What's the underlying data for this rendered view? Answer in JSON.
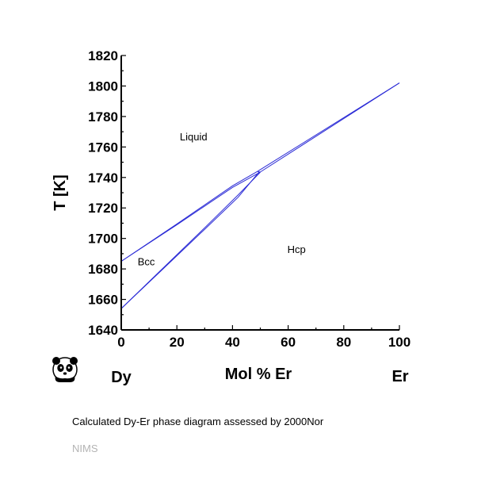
{
  "caption": "Calculated Dy-Er phase diagram assessed by 2000Nor",
  "source_label": "NIMS",
  "icon": "panda-logo-icon",
  "colors": {
    "curve": "#2b2bd6",
    "axis": "#000000",
    "source": "#b4b4b4"
  },
  "chart_data": {
    "type": "line",
    "title": "",
    "xlabel": "Mol % Er",
    "ylabel": "T [K]",
    "xlim": [
      0,
      100
    ],
    "ylim": [
      1640,
      1820
    ],
    "x_ticks": [
      "0",
      "20",
      "40",
      "60",
      "80",
      "100"
    ],
    "y_ticks": [
      "1640",
      "1660",
      "1680",
      "1700",
      "1720",
      "1740",
      "1760",
      "1780",
      "1800",
      "1820"
    ],
    "x_minor_step": 10,
    "y_minor_step": 10,
    "grid": false,
    "legend": "none",
    "element_labels": {
      "left": "Dy",
      "right": "Er"
    },
    "region_labels": [
      {
        "text": "Liquid",
        "x": 26,
        "y": 1767
      },
      {
        "text": "Hcp",
        "x": 63,
        "y": 1693
      },
      {
        "text": "Bcc",
        "x": 9,
        "y": 1685
      }
    ],
    "series": [
      {
        "x": [
          0,
          20,
          40,
          49,
          100
        ],
        "y": [
          1685,
          1709.5,
          1734.5,
          1744,
          1802
        ]
      },
      {
        "x": [
          0,
          20,
          40,
          49.5,
          100
        ],
        "y": [
          1685,
          1709,
          1733.5,
          1743,
          1802
        ]
      },
      {
        "x": [
          0,
          15,
          30,
          42,
          49.5
        ],
        "y": [
          1654,
          1680,
          1706,
          1727,
          1743.5
        ]
      },
      {
        "x": [
          0,
          15,
          30,
          42,
          50
        ],
        "y": [
          1654,
          1680.5,
          1707,
          1728.5,
          1743.5
        ]
      },
      {
        "x": [
          49,
          50
        ],
        "y": [
          1744,
          1743.5
        ]
      }
    ]
  }
}
